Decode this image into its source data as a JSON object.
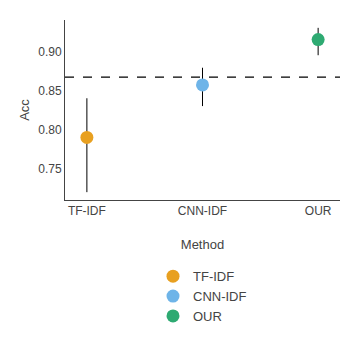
{
  "chart_data": {
    "type": "scatter",
    "xlabel": "Method",
    "ylabel": "Acc",
    "categories": [
      "TF-IDF",
      "CNN-IDF",
      "OUR"
    ],
    "values": [
      0.79,
      0.857,
      0.915
    ],
    "error_low": [
      0.07,
      0.027,
      0.02
    ],
    "error_high": [
      0.05,
      0.022,
      0.015
    ],
    "colors": [
      "#E8A020",
      "#6EB4E8",
      "#2EAA72"
    ],
    "marker": "circle",
    "hline": 0.867,
    "line_style": "dashed",
    "ylim": [
      0.71,
      0.94
    ],
    "yticks": [
      0.75,
      {
        "value": 0.8,
        "label": "0.80"
      },
      0.85,
      {
        "value": 0.9,
        "label": "0.90"
      }
    ],
    "grid": false,
    "legend": "bottom"
  }
}
